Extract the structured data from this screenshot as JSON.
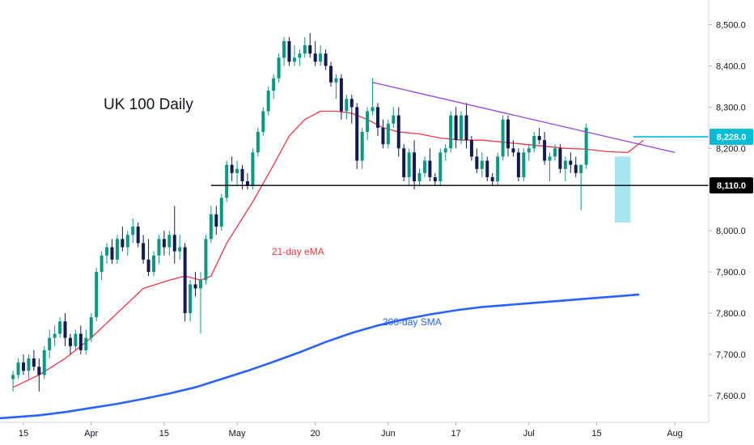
{
  "chart_data": {
    "type": "candlestick",
    "title": "UK 100 Daily",
    "y_axis": {
      "position": "right",
      "ticks": [
        "8,500.0",
        "8,400.0",
        "8,300.0",
        "8,200.0",
        "8,000.0",
        "7,900.0",
        "7,800.0",
        "7,700.0",
        "7,600.0"
      ],
      "tick_values": [
        8500,
        8400,
        8300,
        8200,
        8000,
        7900,
        7800,
        7700,
        7600
      ],
      "ylim": [
        7535,
        8560
      ]
    },
    "x_axis": {
      "ticks": [
        "15",
        "Apr",
        "15",
        "May",
        "20",
        "Jun",
        "17",
        "Jul",
        "15",
        "Aug"
      ],
      "tick_positions": [
        2,
        15,
        29,
        43,
        58,
        72,
        85,
        99,
        112,
        127
      ],
      "xlim": [
        -2.5,
        133.5
      ]
    },
    "colors": {
      "up": "#089981",
      "down": "#131a4f",
      "ema": "#f23645",
      "sma": "#2962ff",
      "trendline": "#9c4fd6",
      "support": "#000000",
      "highlight": "#5fd0e6",
      "price_badge": "#00bcd4"
    },
    "candles": [
      [
        7640,
        7660,
        7610,
        7650
      ],
      [
        7650,
        7690,
        7640,
        7680
      ],
      [
        7680,
        7700,
        7650,
        7660
      ],
      [
        7660,
        7700,
        7640,
        7690
      ],
      [
        7690,
        7710,
        7660,
        7670
      ],
      [
        7670,
        7690,
        7610,
        7650
      ],
      [
        7650,
        7720,
        7640,
        7710
      ],
      [
        7710,
        7760,
        7690,
        7740
      ],
      [
        7740,
        7770,
        7720,
        7750
      ],
      [
        7750,
        7790,
        7740,
        7780
      ],
      [
        7780,
        7800,
        7720,
        7740
      ],
      [
        7740,
        7750,
        7700,
        7720
      ],
      [
        7720,
        7760,
        7710,
        7750
      ],
      [
        7750,
        7770,
        7700,
        7710
      ],
      [
        7710,
        7760,
        7700,
        7740
      ],
      [
        7740,
        7800,
        7730,
        7790
      ],
      [
        7790,
        7910,
        7780,
        7900
      ],
      [
        7900,
        7950,
        7880,
        7940
      ],
      [
        7940,
        7970,
        7920,
        7960
      ],
      [
        7960,
        7980,
        7920,
        7930
      ],
      [
        7930,
        7990,
        7920,
        7980
      ],
      [
        7980,
        8010,
        7950,
        7960
      ],
      [
        7960,
        8000,
        7940,
        7990
      ],
      [
        7990,
        8030,
        7970,
        8010
      ],
      [
        8010,
        8020,
        7960,
        7970
      ],
      [
        7970,
        7990,
        7920,
        7930
      ],
      [
        7930,
        7980,
        7890,
        7900
      ],
      [
        7900,
        7950,
        7890,
        7940
      ],
      [
        7940,
        7990,
        7920,
        7980
      ],
      [
        7980,
        8000,
        7940,
        7960
      ],
      [
        7960,
        8000,
        7940,
        7990
      ],
      [
        7990,
        8060,
        7920,
        7950
      ],
      [
        7950,
        7990,
        7930,
        7960
      ],
      [
        7960,
        7970,
        7780,
        7800
      ],
      [
        7800,
        7880,
        7780,
        7870
      ],
      [
        7870,
        7900,
        7840,
        7860
      ],
      [
        7860,
        7900,
        7750,
        7880
      ],
      [
        7880,
        7990,
        7870,
        7980
      ],
      [
        7980,
        8060,
        7970,
        8040
      ],
      [
        8040,
        8060,
        7990,
        8010
      ],
      [
        8010,
        8090,
        8000,
        8080
      ],
      [
        8080,
        8170,
        8070,
        8160
      ],
      [
        8160,
        8180,
        8120,
        8140
      ],
      [
        8140,
        8170,
        8110,
        8150
      ],
      [
        8150,
        8160,
        8100,
        8120
      ],
      [
        8120,
        8140,
        8100,
        8110
      ],
      [
        8110,
        8200,
        8100,
        8190
      ],
      [
        8190,
        8250,
        8180,
        8240
      ],
      [
        8240,
        8300,
        8230,
        8290
      ],
      [
        8290,
        8350,
        8280,
        8340
      ],
      [
        8340,
        8380,
        8320,
        8370
      ],
      [
        8370,
        8430,
        8360,
        8420
      ],
      [
        8420,
        8470,
        8400,
        8460
      ],
      [
        8460,
        8470,
        8400,
        8410
      ],
      [
        8410,
        8450,
        8400,
        8420
      ],
      [
        8420,
        8440,
        8400,
        8430
      ],
      [
        8430,
        8470,
        8420,
        8450
      ],
      [
        8450,
        8480,
        8420,
        8430
      ],
      [
        8430,
        8460,
        8400,
        8410
      ],
      [
        8410,
        8450,
        8400,
        8430
      ],
      [
        8430,
        8440,
        8390,
        8400
      ],
      [
        8400,
        8410,
        8350,
        8360
      ],
      [
        8360,
        8380,
        8320,
        8370
      ],
      [
        8370,
        8380,
        8270,
        8290
      ],
      [
        8290,
        8330,
        8270,
        8320
      ],
      [
        8320,
        8330,
        8260,
        8300
      ],
      [
        8300,
        8310,
        8150,
        8170
      ],
      [
        8170,
        8250,
        8150,
        8240
      ],
      [
        8240,
        8300,
        8220,
        8290
      ],
      [
        8290,
        8370,
        8280,
        8300
      ],
      [
        8300,
        8310,
        8230,
        8250
      ],
      [
        8250,
        8270,
        8200,
        8210
      ],
      [
        8210,
        8270,
        8200,
        8260
      ],
      [
        8260,
        8300,
        8250,
        8280
      ],
      [
        8280,
        8300,
        8180,
        8200
      ],
      [
        8200,
        8210,
        8120,
        8130
      ],
      [
        8130,
        8200,
        8110,
        8190
      ],
      [
        8190,
        8220,
        8100,
        8120
      ],
      [
        8120,
        8150,
        8110,
        8140
      ],
      [
        8140,
        8180,
        8130,
        8170
      ],
      [
        8170,
        8200,
        8120,
        8130
      ],
      [
        8130,
        8140,
        8110,
        8120
      ],
      [
        8120,
        8200,
        8110,
        8190
      ],
      [
        8190,
        8210,
        8170,
        8200
      ],
      [
        8200,
        8290,
        8190,
        8280
      ],
      [
        8280,
        8300,
        8200,
        8220
      ],
      [
        8220,
        8290,
        8210,
        8280
      ],
      [
        8280,
        8310,
        8200,
        8220
      ],
      [
        8220,
        8230,
        8170,
        8180
      ],
      [
        8180,
        8200,
        8140,
        8150
      ],
      [
        8150,
        8190,
        8130,
        8170
      ],
      [
        8170,
        8180,
        8120,
        8130
      ],
      [
        8130,
        8140,
        8110,
        8120
      ],
      [
        8120,
        8190,
        8110,
        8180
      ],
      [
        8180,
        8280,
        8170,
        8270
      ],
      [
        8270,
        8280,
        8180,
        8200
      ],
      [
        8200,
        8220,
        8180,
        8190
      ],
      [
        8190,
        8200,
        8120,
        8130
      ],
      [
        8130,
        8200,
        8120,
        8190
      ],
      [
        8190,
        8210,
        8170,
        8200
      ],
      [
        8200,
        8240,
        8190,
        8230
      ],
      [
        8230,
        8250,
        8210,
        8220
      ],
      [
        8220,
        8240,
        8160,
        8170
      ],
      [
        8170,
        8190,
        8120,
        8180
      ],
      [
        8180,
        8210,
        8170,
        8200
      ],
      [
        8200,
        8210,
        8140,
        8150
      ],
      [
        8150,
        8180,
        8120,
        8170
      ],
      [
        8170,
        8190,
        8140,
        8160
      ],
      [
        8160,
        8180,
        8130,
        8140
      ],
      [
        8140,
        8160,
        8050,
        8160
      ],
      [
        8160,
        8260,
        8150,
        8250
      ]
    ],
    "candle_x_start": 0,
    "ema_21": {
      "label": "21-day eMA",
      "x": [
        0,
        5,
        10,
        15,
        20,
        25,
        30,
        33,
        36,
        38,
        41,
        43,
        46,
        50,
        53,
        56,
        59,
        62,
        65,
        68,
        71,
        74,
        78,
        82,
        86,
        90,
        94,
        98,
        102,
        106,
        110,
        114,
        118,
        121
      ],
      "y": [
        7620,
        7650,
        7690,
        7740,
        7800,
        7860,
        7880,
        7890,
        7880,
        7890,
        7970,
        8010,
        8070,
        8160,
        8230,
        8270,
        8290,
        8290,
        8285,
        8270,
        8250,
        8240,
        8235,
        8225,
        8220,
        8220,
        8215,
        8210,
        8205,
        8200,
        8198,
        8192,
        8190,
        8220
      ]
    },
    "sma_200": {
      "label": "200-day SMA",
      "x": [
        -2.5,
        5,
        10,
        15,
        20,
        25,
        30,
        35,
        40,
        45,
        50,
        55,
        60,
        65,
        70,
        75,
        80,
        85,
        90,
        95,
        100,
        105,
        110,
        115,
        120
      ],
      "y": [
        7545,
        7552,
        7560,
        7570,
        7580,
        7592,
        7605,
        7620,
        7640,
        7660,
        7682,
        7705,
        7730,
        7752,
        7770,
        7785,
        7797,
        7807,
        7815,
        7820,
        7825,
        7830,
        7835,
        7840,
        7845
      ]
    },
    "trendline": {
      "x": [
        69,
        127
      ],
      "y": [
        8360,
        8190
      ]
    },
    "support": {
      "y": 8110,
      "label": "8,110.0"
    },
    "last_price": {
      "y": 8228,
      "label": "8,228.0"
    },
    "highlight_box": {
      "x_start": 115.5,
      "x_end": 118.5,
      "y_low": 8020,
      "y_high": 8180
    }
  }
}
